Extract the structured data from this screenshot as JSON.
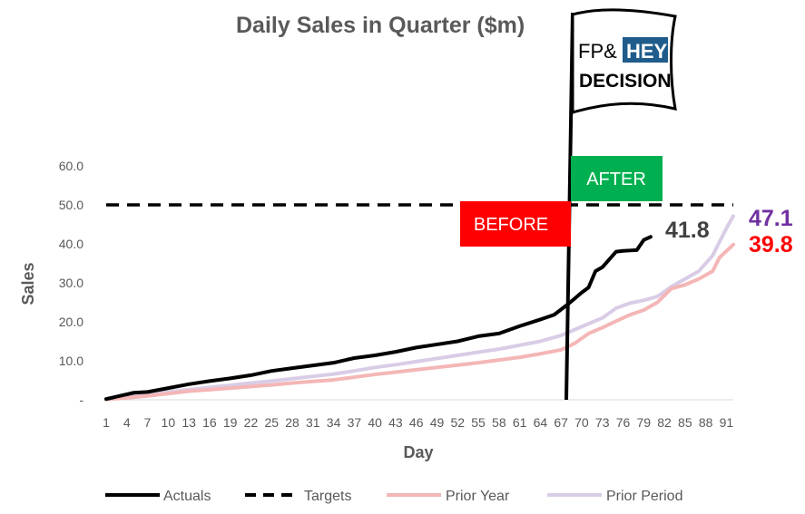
{
  "chart_data": {
    "type": "line",
    "title": "Daily Sales in Quarter ($m)",
    "xlabel": "Day",
    "ylabel": "Sales",
    "ylim": [
      0,
      60
    ],
    "xlim": [
      1,
      92
    ],
    "y_ticks": [
      "-",
      "10.0",
      "20.0",
      "30.0",
      "40.0",
      "50.0",
      "60.0"
    ],
    "x_ticks": [
      "1",
      "4",
      "7",
      "10",
      "13",
      "16",
      "19",
      "22",
      "25",
      "28",
      "31",
      "34",
      "37",
      "40",
      "43",
      "46",
      "49",
      "52",
      "55",
      "58",
      "61",
      "64",
      "67",
      "70",
      "73",
      "76",
      "79",
      "82",
      "85",
      "88",
      "91"
    ],
    "series": [
      {
        "name": "Actuals",
        "color": "#000000",
        "style": "solid",
        "x": [
          1,
          3,
          5,
          7,
          10,
          13,
          16,
          19,
          22,
          25,
          28,
          31,
          34,
          37,
          40,
          43,
          46,
          49,
          52,
          55,
          58,
          61,
          64,
          66,
          68,
          70,
          71,
          72,
          73,
          74,
          75,
          76,
          77,
          78,
          79,
          80
        ],
        "y": [
          0.2,
          1.0,
          1.8,
          2.0,
          3.0,
          4.0,
          4.8,
          5.5,
          6.3,
          7.4,
          8.1,
          8.8,
          9.5,
          10.7,
          11.4,
          12.3,
          13.4,
          14.2,
          15.0,
          16.3,
          17.0,
          18.9,
          20.6,
          21.8,
          24.5,
          27.5,
          28.8,
          33.0,
          34.0,
          36.0,
          38.0,
          38.2,
          38.3,
          38.4,
          41.0,
          41.8
        ]
      },
      {
        "name": "Targets",
        "color": "#000000",
        "style": "dashed",
        "x": [
          1,
          92
        ],
        "y": [
          50,
          50
        ]
      },
      {
        "name": "Prior Year",
        "color": "#f4b6b6",
        "style": "solid",
        "x": [
          1,
          4,
          7,
          10,
          13,
          16,
          19,
          22,
          25,
          28,
          31,
          34,
          37,
          40,
          43,
          46,
          49,
          52,
          55,
          58,
          61,
          64,
          67,
          69,
          71,
          73,
          75,
          77,
          79,
          81,
          83,
          85,
          87,
          89,
          90,
          92
        ],
        "y": [
          0.1,
          0.5,
          1.0,
          1.6,
          2.2,
          2.6,
          3.0,
          3.4,
          3.8,
          4.3,
          4.7,
          5.1,
          5.8,
          6.5,
          7.1,
          7.7,
          8.3,
          8.9,
          9.5,
          10.2,
          10.9,
          11.8,
          12.8,
          14.5,
          17.0,
          18.5,
          20.2,
          21.8,
          23.0,
          25.0,
          28.5,
          29.5,
          31.0,
          33.0,
          36.5,
          39.8
        ]
      },
      {
        "name": "Prior Period",
        "color": "#d9cce6",
        "style": "solid",
        "x": [
          1,
          4,
          7,
          10,
          13,
          16,
          19,
          22,
          25,
          28,
          31,
          34,
          37,
          40,
          43,
          46,
          49,
          52,
          55,
          58,
          61,
          64,
          67,
          69,
          71,
          73,
          75,
          77,
          79,
          81,
          83,
          85,
          87,
          89,
          91,
          92
        ],
        "y": [
          0.3,
          0.8,
          1.4,
          2.0,
          2.6,
          3.2,
          3.7,
          4.3,
          4.8,
          5.4,
          6.0,
          6.6,
          7.4,
          8.3,
          9.0,
          9.8,
          10.6,
          11.4,
          12.2,
          13.0,
          14.0,
          15.0,
          16.5,
          18.0,
          19.5,
          21.0,
          23.5,
          24.8,
          25.5,
          26.5,
          29.0,
          31.0,
          33.0,
          37.0,
          44.0,
          47.1
        ]
      }
    ],
    "end_labels": [
      {
        "text": "47.1",
        "color": "#7030a0"
      },
      {
        "text": "39.8",
        "color": "#ff0000"
      },
      {
        "text": "41.8",
        "color": "#404040"
      }
    ],
    "decision_day": 68,
    "annotations": {
      "before": {
        "text": "BEFORE",
        "color": "#ff0000"
      },
      "after": {
        "text": "AFTER",
        "color": "#00b050"
      }
    },
    "flag": {
      "brand_left": "FP&",
      "brand_right": "HEY",
      "brand_right_bg": "#1f5c8b",
      "subtitle": "DECISION"
    },
    "legend": {
      "placement": "bottom"
    },
    "grid": false
  }
}
